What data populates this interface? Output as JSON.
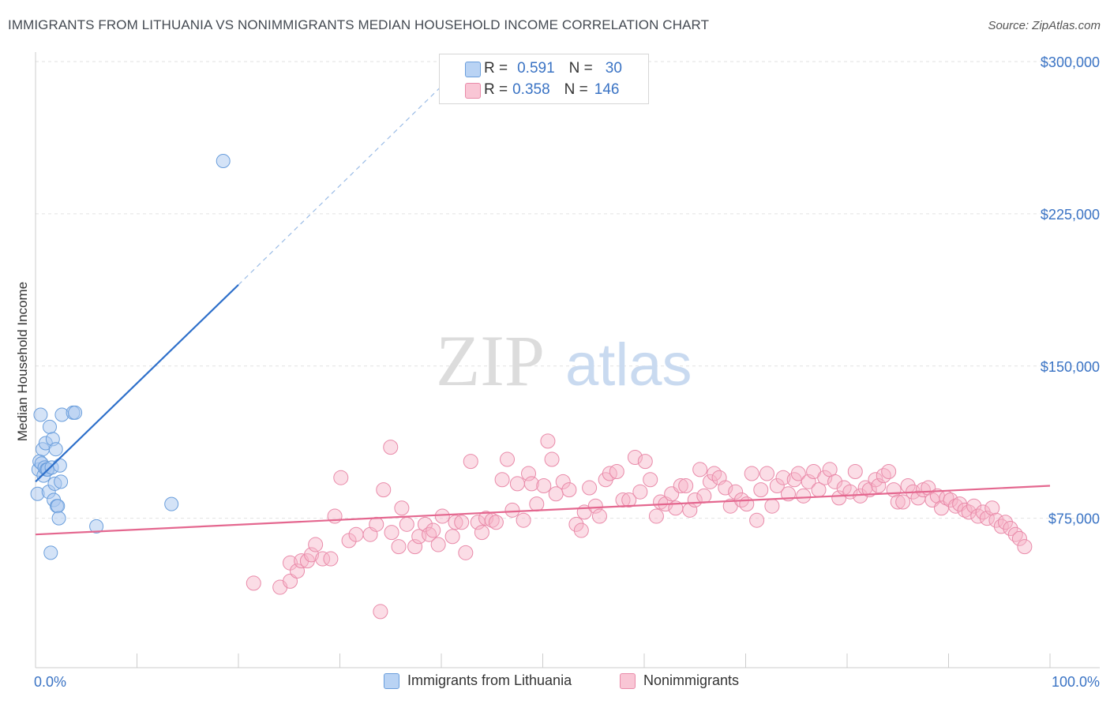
{
  "header": {
    "title": "IMMIGRANTS FROM LITHUANIA VS NONIMMIGRANTS MEDIAN HOUSEHOLD INCOME CORRELATION CHART",
    "source": "Source: ZipAtlas.com"
  },
  "watermark": {
    "zip": "ZIP",
    "atlas": "atlas"
  },
  "stats": {
    "rows": [
      {
        "r_label": "R =",
        "r_value": "0.591",
        "n_label": "N =",
        "n_value": "30"
      },
      {
        "r_label": "R =",
        "r_value": "0.358",
        "n_label": "N =",
        "n_value": "146"
      }
    ]
  },
  "legend": {
    "items": [
      {
        "label": "Immigrants from Lithuania"
      },
      {
        "label": "Nonimmigrants"
      }
    ]
  },
  "colors": {
    "blue_fill": "#a9c8f0",
    "blue_stroke": "#6a9edc",
    "blue_line": "#2d6fca",
    "pink_fill": "#f6b4c8",
    "pink_stroke": "#e98aa9",
    "pink_line": "#e4678f",
    "tick_text": "#3a73c4",
    "grid": "#e2e2e2"
  },
  "chart_data": {
    "type": "scatter",
    "title": "IMMIGRANTS FROM LITHUANIA VS NONIMMIGRANTS MEDIAN HOUSEHOLD INCOME CORRELATION CHART",
    "xlabel": "",
    "ylabel": "Median Household Income",
    "xlim": [
      0,
      100
    ],
    "ylim": [
      0,
      315000
    ],
    "x_tick_labels": [
      "0.0%",
      "100.0%"
    ],
    "y_ticks": [
      75000,
      150000,
      225000,
      300000
    ],
    "y_tick_labels": [
      "$75,000",
      "$150,000",
      "$225,000",
      "$300,000"
    ],
    "grid": true,
    "legend_position": "bottom",
    "series": [
      {
        "name": "Immigrants from Lithuania",
        "R": 0.591,
        "N": 30,
        "trend": {
          "x": [
            0,
            20
          ],
          "y": [
            93000,
            190000
          ],
          "extended_to": [
            42.5,
            300000
          ]
        },
        "points": [
          [
            0.2,
            87000
          ],
          [
            0.3,
            99000
          ],
          [
            0.4,
            103000
          ],
          [
            0.5,
            126000
          ],
          [
            0.6,
            102000
          ],
          [
            0.7,
            109000
          ],
          [
            0.8,
            96000
          ],
          [
            0.9,
            100000
          ],
          [
            1.0,
            112000
          ],
          [
            1.1,
            99000
          ],
          [
            1.2,
            99000
          ],
          [
            1.3,
            88000
          ],
          [
            1.4,
            120000
          ],
          [
            1.5,
            58000
          ],
          [
            1.6,
            100000
          ],
          [
            1.7,
            114000
          ],
          [
            1.8,
            84000
          ],
          [
            1.9,
            92000
          ],
          [
            2.0,
            109000
          ],
          [
            2.1,
            81000
          ],
          [
            2.2,
            81000
          ],
          [
            2.3,
            75000
          ],
          [
            2.4,
            101000
          ],
          [
            2.5,
            93000
          ],
          [
            2.6,
            126000
          ],
          [
            3.7,
            127000
          ],
          [
            3.9,
            127000
          ],
          [
            6.0,
            71000
          ],
          [
            13.4,
            82000
          ],
          [
            18.5,
            251000
          ]
        ]
      },
      {
        "name": "Nonimmigrants",
        "R": 0.358,
        "N": 146,
        "trend": {
          "x": [
            0,
            100
          ],
          "y": [
            67000,
            91000
          ]
        },
        "points": [
          [
            21.5,
            43000
          ],
          [
            24.1,
            41000
          ],
          [
            25.1,
            44000
          ],
          [
            25.1,
            53000
          ],
          [
            25.8,
            49000
          ],
          [
            26.2,
            54000
          ],
          [
            26.8,
            54000
          ],
          [
            27.2,
            57000
          ],
          [
            27.6,
            62000
          ],
          [
            28.3,
            55000
          ],
          [
            29.1,
            55000
          ],
          [
            29.5,
            76000
          ],
          [
            30.1,
            95000
          ],
          [
            30.9,
            64000
          ],
          [
            31.6,
            67000
          ],
          [
            33.0,
            67000
          ],
          [
            33.6,
            72000
          ],
          [
            34.0,
            29000
          ],
          [
            34.3,
            89000
          ],
          [
            35.0,
            110000
          ],
          [
            35.1,
            68000
          ],
          [
            35.8,
            61000
          ],
          [
            36.1,
            80000
          ],
          [
            36.6,
            72000
          ],
          [
            37.4,
            61000
          ],
          [
            37.8,
            66000
          ],
          [
            38.4,
            72000
          ],
          [
            38.8,
            67000
          ],
          [
            39.2,
            69000
          ],
          [
            39.7,
            62000
          ],
          [
            40.1,
            76000
          ],
          [
            41.1,
            66000
          ],
          [
            41.4,
            73000
          ],
          [
            42.0,
            73000
          ],
          [
            42.4,
            58000
          ],
          [
            42.9,
            103000
          ],
          [
            43.6,
            73000
          ],
          [
            44.0,
            68000
          ],
          [
            44.4,
            75000
          ],
          [
            45.0,
            74000
          ],
          [
            45.4,
            73000
          ],
          [
            46.0,
            94000
          ],
          [
            46.5,
            104000
          ],
          [
            47.0,
            79000
          ],
          [
            47.5,
            92000
          ],
          [
            48.1,
            74000
          ],
          [
            48.6,
            97000
          ],
          [
            48.9,
            92000
          ],
          [
            49.4,
            82000
          ],
          [
            50.1,
            91000
          ],
          [
            50.5,
            113000
          ],
          [
            50.9,
            104000
          ],
          [
            51.3,
            87000
          ],
          [
            52.0,
            93000
          ],
          [
            52.6,
            89000
          ],
          [
            53.3,
            72000
          ],
          [
            53.8,
            69000
          ],
          [
            54.1,
            78000
          ],
          [
            54.6,
            90000
          ],
          [
            55.2,
            81000
          ],
          [
            55.6,
            76000
          ],
          [
            56.2,
            94000
          ],
          [
            56.6,
            97000
          ],
          [
            57.3,
            98000
          ],
          [
            57.9,
            84000
          ],
          [
            58.5,
            84000
          ],
          [
            59.1,
            105000
          ],
          [
            59.6,
            88000
          ],
          [
            60.1,
            103000
          ],
          [
            60.6,
            94000
          ],
          [
            61.2,
            76000
          ],
          [
            61.6,
            83000
          ],
          [
            62.1,
            82000
          ],
          [
            62.7,
            87000
          ],
          [
            63.1,
            80000
          ],
          [
            63.6,
            91000
          ],
          [
            64.1,
            91000
          ],
          [
            64.5,
            79000
          ],
          [
            65.0,
            84000
          ],
          [
            65.5,
            99000
          ],
          [
            65.9,
            86000
          ],
          [
            66.5,
            93000
          ],
          [
            66.9,
            97000
          ],
          [
            67.4,
            95000
          ],
          [
            68.0,
            90000
          ],
          [
            68.5,
            81000
          ],
          [
            69.0,
            88000
          ],
          [
            69.6,
            84000
          ],
          [
            70.1,
            82000
          ],
          [
            70.6,
            97000
          ],
          [
            71.1,
            74000
          ],
          [
            71.5,
            89000
          ],
          [
            72.1,
            97000
          ],
          [
            72.6,
            81000
          ],
          [
            73.1,
            91000
          ],
          [
            73.7,
            95000
          ],
          [
            74.2,
            87000
          ],
          [
            74.8,
            94000
          ],
          [
            75.2,
            97000
          ],
          [
            75.7,
            86000
          ],
          [
            76.2,
            93000
          ],
          [
            76.7,
            98000
          ],
          [
            77.2,
            89000
          ],
          [
            77.8,
            95000
          ],
          [
            78.3,
            99000
          ],
          [
            78.8,
            93000
          ],
          [
            79.2,
            85000
          ],
          [
            79.7,
            90000
          ],
          [
            80.3,
            88000
          ],
          [
            80.8,
            98000
          ],
          [
            81.3,
            86000
          ],
          [
            81.8,
            90000
          ],
          [
            82.2,
            89000
          ],
          [
            82.8,
            94000
          ],
          [
            83.1,
            91000
          ],
          [
            83.6,
            96000
          ],
          [
            84.1,
            98000
          ],
          [
            84.6,
            89000
          ],
          [
            85.0,
            83000
          ],
          [
            85.5,
            83000
          ],
          [
            86.0,
            91000
          ],
          [
            86.5,
            88000
          ],
          [
            87.0,
            85000
          ],
          [
            87.5,
            89000
          ],
          [
            88.0,
            90000
          ],
          [
            88.4,
            84000
          ],
          [
            88.9,
            86000
          ],
          [
            89.3,
            80000
          ],
          [
            89.8,
            85000
          ],
          [
            90.2,
            84000
          ],
          [
            90.7,
            81000
          ],
          [
            91.1,
            82000
          ],
          [
            91.6,
            79000
          ],
          [
            92.0,
            78000
          ],
          [
            92.5,
            81000
          ],
          [
            92.9,
            76000
          ],
          [
            93.4,
            78000
          ],
          [
            93.8,
            75000
          ],
          [
            94.3,
            80000
          ],
          [
            94.7,
            74000
          ],
          [
            95.2,
            71000
          ],
          [
            95.6,
            73000
          ],
          [
            96.1,
            70000
          ],
          [
            96.6,
            67000
          ],
          [
            97.0,
            65000
          ],
          [
            97.5,
            61000
          ]
        ]
      }
    ]
  }
}
